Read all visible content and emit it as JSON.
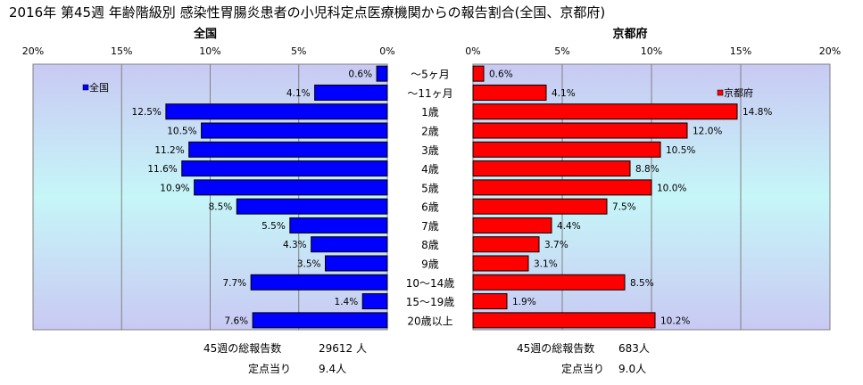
{
  "chart_data": {
    "type": "bar",
    "title": "2016年 第45週 年齢階級別 感染性胃腸炎患者の小児科定点医療機関からの報告割合(全国、京都府)",
    "categories": [
      "～5ヶ月",
      "～11ヶ月",
      "1歳",
      "2歳",
      "3歳",
      "4歳",
      "5歳",
      "6歳",
      "7歳",
      "8歳",
      "9歳",
      "10～14歳",
      "15～19歳",
      "20歳以上"
    ],
    "x_ticks": [
      "0%",
      "5%",
      "10%",
      "15%",
      "20%"
    ],
    "xlim": [
      0,
      20
    ],
    "series": [
      {
        "name": "全国",
        "panel_title": "全国",
        "color": "#0000ff",
        "values": [
          0.6,
          4.1,
          12.5,
          10.5,
          11.2,
          11.6,
          10.9,
          8.5,
          5.5,
          4.3,
          3.5,
          7.7,
          1.4,
          7.6
        ],
        "labels": [
          "0.6%",
          "4.1%",
          "12.5%",
          "10.5%",
          "11.2%",
          "11.6%",
          "10.9%",
          "8.5%",
          "5.5%",
          "4.3%",
          "3.5%",
          "7.7%",
          "1.4%",
          "7.6%"
        ],
        "legend_position": "top-left",
        "footer": {
          "total_label": "45週の総報告数",
          "total_value": "29612 人",
          "per_site_label": "定点当り",
          "per_site_value": "9.4人"
        }
      },
      {
        "name": "京都府",
        "panel_title": "京都府",
        "color": "#ff0000",
        "values": [
          0.6,
          4.1,
          14.8,
          12.0,
          10.5,
          8.8,
          10.0,
          7.5,
          4.4,
          3.7,
          3.1,
          8.5,
          1.9,
          10.2
        ],
        "labels": [
          "0.6%",
          "4.1%",
          "14.8%",
          "12.0%",
          "10.5%",
          "8.8%",
          "10.0%",
          "7.5%",
          "4.4%",
          "3.7%",
          "3.1%",
          "8.5%",
          "1.9%",
          "10.2%"
        ],
        "legend_position": "top-right",
        "footer": {
          "total_label": "45週の総報告数",
          "total_value": "683人",
          "per_site_label": "定点当り",
          "per_site_value": "9.0人"
        }
      }
    ]
  }
}
